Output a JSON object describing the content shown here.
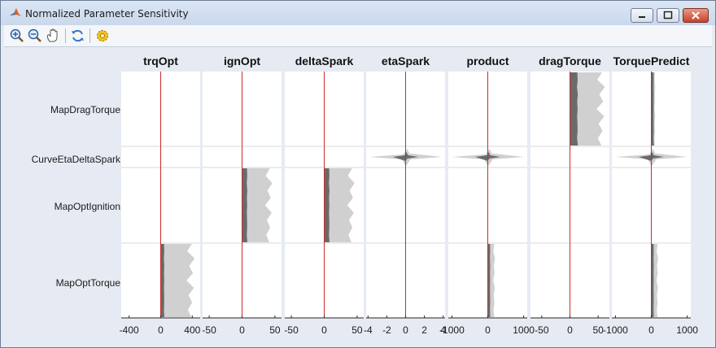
{
  "window": {
    "title": "Normalized Parameter Sensitivity"
  },
  "toolbar": {
    "tools": [
      "zoom-in",
      "zoom-out",
      "pan",
      "refresh",
      "settings"
    ]
  },
  "colors": {
    "baseline": "#cc2b2b",
    "band_outer": "#d0d0d0",
    "band_inner": "#6a6a6a",
    "band_mid": "#a7a7a7"
  },
  "chart_data": {
    "type": "area",
    "rows": [
      "MapDragTorque",
      "CurveEtaDeltaSpark",
      "MapOptIgnition",
      "MapOptTorque"
    ],
    "columns": [
      {
        "title": "trqOpt",
        "ticks": [
          "-400",
          "0",
          "400"
        ],
        "xlim": [
          -500,
          500
        ]
      },
      {
        "title": "ignOpt",
        "ticks": [
          "-50",
          "0",
          "50"
        ],
        "xlim": [
          -60,
          60
        ]
      },
      {
        "title": "deltaSpark",
        "ticks": [
          "-50",
          "0",
          "50"
        ],
        "xlim": [
          -60,
          60
        ]
      },
      {
        "title": "etaSpark",
        "ticks": [
          "-4",
          "-2",
          "0",
          "2",
          "4"
        ],
        "xlim": [
          -4.2,
          4.2
        ]
      },
      {
        "title": "product",
        "ticks": [
          "-1000",
          "0",
          "1000"
        ],
        "xlim": [
          -1100,
          1100
        ]
      },
      {
        "title": "dragTorque",
        "ticks": [
          "-50",
          "0",
          "50"
        ],
        "xlim": [
          -70,
          70
        ]
      },
      {
        "title": "TorquePredict",
        "ticks": [
          "-1000",
          "0",
          "1000"
        ],
        "xlim": [
          -1100,
          1100
        ]
      }
    ],
    "sensitivity": [
      [
        [
          0,
          0
        ],
        [
          0,
          0
        ],
        [
          0,
          18
        ],
        [
          430,
          46
        ]
      ],
      [
        [
          0,
          0
        ],
        [
          0,
          0
        ],
        [
          46,
          8
        ],
        [
          0,
          0
        ]
      ],
      [
        [
          0,
          0
        ],
        [
          0,
          0
        ],
        [
          46,
          8
        ],
        [
          0,
          0
        ]
      ],
      [
        [
          0,
          0
        ],
        [
          4.2,
          0.6
        ],
        [
          0,
          0
        ],
        [
          0,
          0
        ]
      ],
      [
        [
          0,
          0
        ],
        [
          1000,
          120
        ],
        [
          0,
          0
        ],
        [
          200,
          20
        ]
      ],
      [
        [
          62,
          14
        ],
        [
          0,
          0
        ],
        [
          0,
          0
        ],
        [
          0,
          0
        ]
      ],
      [
        [
          110,
          10
        ],
        [
          1000,
          100
        ],
        [
          0,
          0
        ],
        [
          190,
          12
        ]
      ]
    ]
  }
}
